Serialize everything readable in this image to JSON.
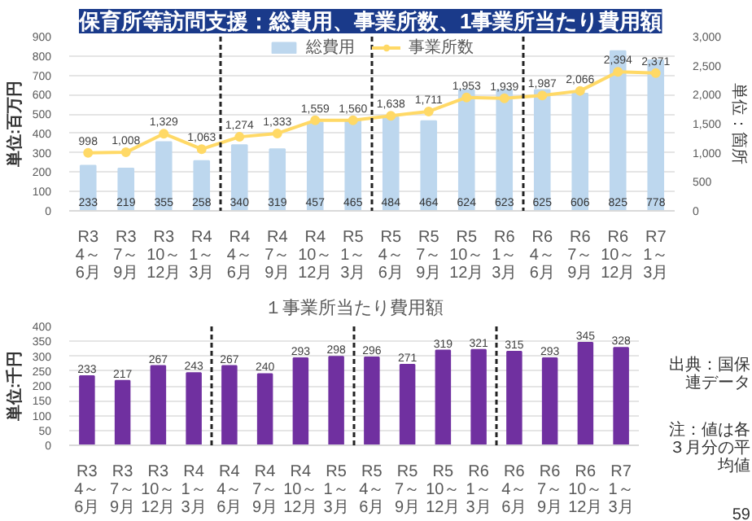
{
  "chart_data": [
    {
      "type": "bar",
      "title": "保育所等訪問支援：総費用、事業所数、1事業所当たり費用額",
      "ylabel": "単位:百万円",
      "y2label": "単位：箇所",
      "categories": [
        "R3\n4～6月",
        "R3\n7～9月",
        "R3\n10～12月",
        "R4\n1～3月",
        "R4\n4～6月",
        "R4\n7～9月",
        "R4\n10～12月",
        "R5\n1～3月",
        "R5\n4～6月",
        "R5\n7～9月",
        "R5\n10～12月",
        "R6\n1～3月",
        "R6\n4～6月",
        "R6\n7～9月",
        "R6\n10～12月",
        "R7\n1～3月"
      ],
      "series": [
        {
          "name": "総費用",
          "type": "bar",
          "color": "#bdd7ee",
          "values": [
            233,
            219,
            355,
            258,
            340,
            319,
            457,
            465,
            484,
            464,
            624,
            623,
            625,
            606,
            825,
            778
          ]
        },
        {
          "name": "事業所数",
          "type": "line",
          "axis": "y2",
          "color": "#ffd966",
          "values": [
            998,
            1008,
            1329,
            1063,
            1274,
            1333,
            1559,
            1560,
            1638,
            1711,
            1953,
            1939,
            1987,
            2066,
            2394,
            2371
          ],
          "value_labels": [
            "998",
            "1,008",
            "1,329",
            "1,063",
            "1,274",
            "1,333",
            "1,559",
            "1,560",
            "1,638",
            "1,711",
            "1,953",
            "1,939",
            "1,987",
            "2,066",
            "2,394",
            "2,371"
          ]
        }
      ],
      "ylim": [
        0,
        900
      ],
      "yticks": [
        0,
        100,
        200,
        300,
        400,
        500,
        600,
        700,
        800,
        900
      ],
      "y2lim": [
        0,
        3000
      ],
      "y2ticks": [
        0,
        500,
        {
          "value": 1000,
          "label": "1,000"
        },
        {
          "value": 1500,
          "label": "1,500"
        },
        {
          "value": 2000,
          "label": "2,000"
        },
        {
          "value": 2500,
          "label": "2,500"
        },
        {
          "value": 3000,
          "label": "3,000"
        }
      ],
      "grid": "y",
      "legend": "top",
      "data_labels": true,
      "marker": "circle"
    },
    {
      "type": "bar",
      "title": "１事業所当たり費用額",
      "ylabel": "単位:千円",
      "categories": [
        "R3\n4～6月",
        "R3\n7～9月",
        "R3\n10～12月",
        "R4\n1～3月",
        "R4\n4～6月",
        "R4\n7～9月",
        "R4\n10～12月",
        "R5\n1～3月",
        "R5\n4～6月",
        "R5\n7～9月",
        "R5\n10～12月",
        "R6\n1～3月",
        "R6\n4～6月",
        "R6\n7～9月",
        "R6\n10～12月",
        "R7\n1～3月"
      ],
      "values": [
        233,
        217,
        267,
        243,
        267,
        240,
        293,
        298,
        296,
        271,
        319,
        321,
        315,
        293,
        345,
        328
      ],
      "color": "#7030a0",
      "ylim": [
        0,
        400
      ],
      "yticks": [
        0,
        50,
        100,
        150,
        200,
        250,
        300,
        350,
        400
      ],
      "grid": "y",
      "data_labels": true,
      "annotations": [
        "出典：国保連データ",
        "注：値は各３月分の平均値",
        "59"
      ]
    }
  ]
}
